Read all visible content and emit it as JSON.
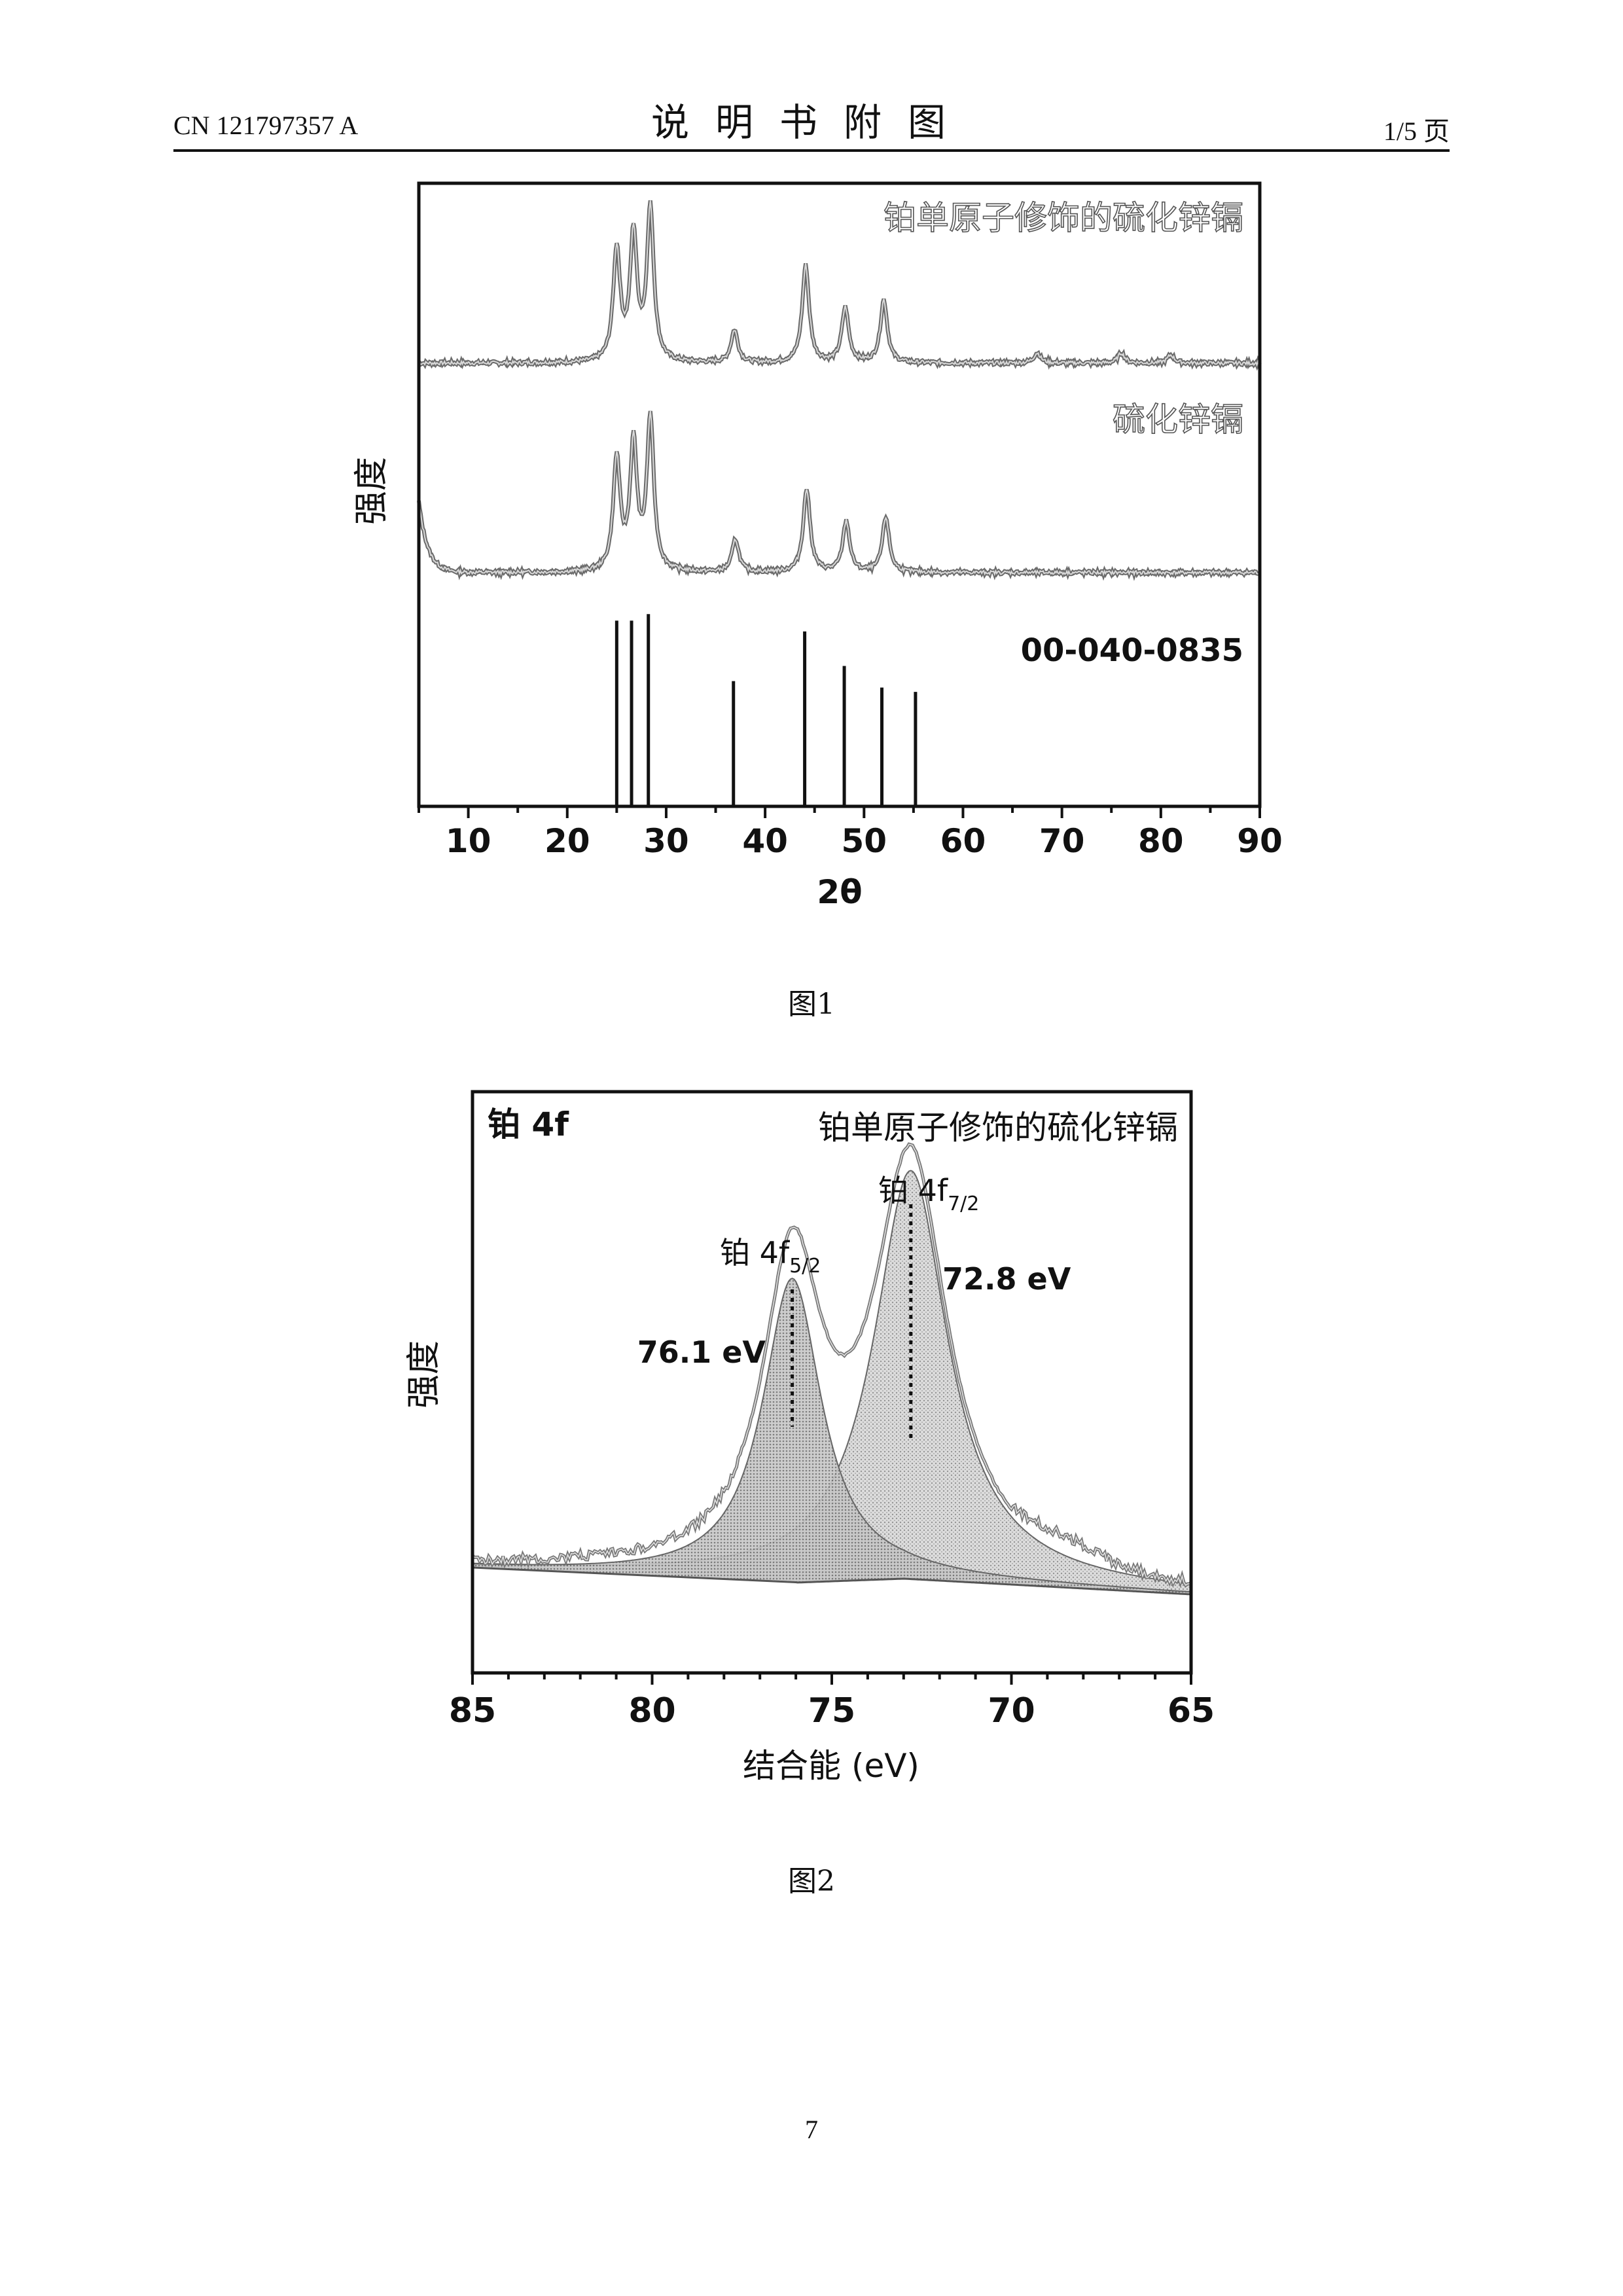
{
  "header": {
    "doc_number": "CN 121797357 A",
    "title": "说明书附图",
    "page_of": "1/5 页"
  },
  "figure1": {
    "caption": "图1",
    "chart_data": {
      "type": "line",
      "xlabel": "2θ",
      "ylabel": "强度",
      "xlim": [
        5,
        90
      ],
      "x_ticks": [
        "10",
        "20",
        "30",
        "40",
        "50",
        "60",
        "70",
        "80",
        "90"
      ],
      "series": [
        {
          "name": "铂单原子修饰的硫化锌镉",
          "peaks": [
            {
              "x": 25.0,
              "height": 0.55
            },
            {
              "x": 26.7,
              "height": 0.62
            },
            {
              "x": 28.4,
              "height": 0.75
            },
            {
              "x": 36.9,
              "height": 0.16
            },
            {
              "x": 44.1,
              "height": 0.48
            },
            {
              "x": 48.1,
              "height": 0.27
            },
            {
              "x": 52.0,
              "height": 0.31
            },
            {
              "x": 67.5,
              "height": 0.05
            },
            {
              "x": 76.0,
              "height": 0.05
            },
            {
              "x": 81.0,
              "height": 0.04
            }
          ]
        },
        {
          "name": "硫化锌镉",
          "peaks": [
            {
              "x": 25.0,
              "height": 0.55
            },
            {
              "x": 26.7,
              "height": 0.62
            },
            {
              "x": 28.4,
              "height": 0.75
            },
            {
              "x": 37.0,
              "height": 0.16
            },
            {
              "x": 44.2,
              "height": 0.41
            },
            {
              "x": 48.2,
              "height": 0.25
            },
            {
              "x": 52.2,
              "height": 0.27
            }
          ]
        },
        {
          "name": "00-040-0835",
          "type": "reference_sticks",
          "sticks": [
            {
              "x": 25.0,
              "height": 0.86
            },
            {
              "x": 26.5,
              "height": 0.86
            },
            {
              "x": 28.2,
              "height": 0.89
            },
            {
              "x": 36.8,
              "height": 0.58
            },
            {
              "x": 44.0,
              "height": 0.81
            },
            {
              "x": 48.0,
              "height": 0.65
            },
            {
              "x": 51.8,
              "height": 0.55
            },
            {
              "x": 55.2,
              "height": 0.53
            }
          ]
        }
      ]
    }
  },
  "figure2": {
    "caption": "图2",
    "chart_data": {
      "type": "area",
      "title": "铂单原子修饰的硫化锌镉",
      "corner_label": "铂 4f",
      "xlabel": "结合能 (eV)",
      "ylabel": "强度",
      "xlim": [
        85,
        65
      ],
      "x_ticks": [
        "85",
        "80",
        "75",
        "70",
        "65"
      ],
      "peaks": [
        {
          "label_prefix": "铂 4f",
          "label_sub": "5/2",
          "binding_energy_label": "76.1 eV",
          "center": 76.1,
          "height": 0.58
        },
        {
          "label_prefix": "铂 4f",
          "label_sub": "7/2",
          "binding_energy_label": "72.8 eV",
          "center": 72.8,
          "height": 0.78
        }
      ]
    }
  },
  "page_number": "7"
}
